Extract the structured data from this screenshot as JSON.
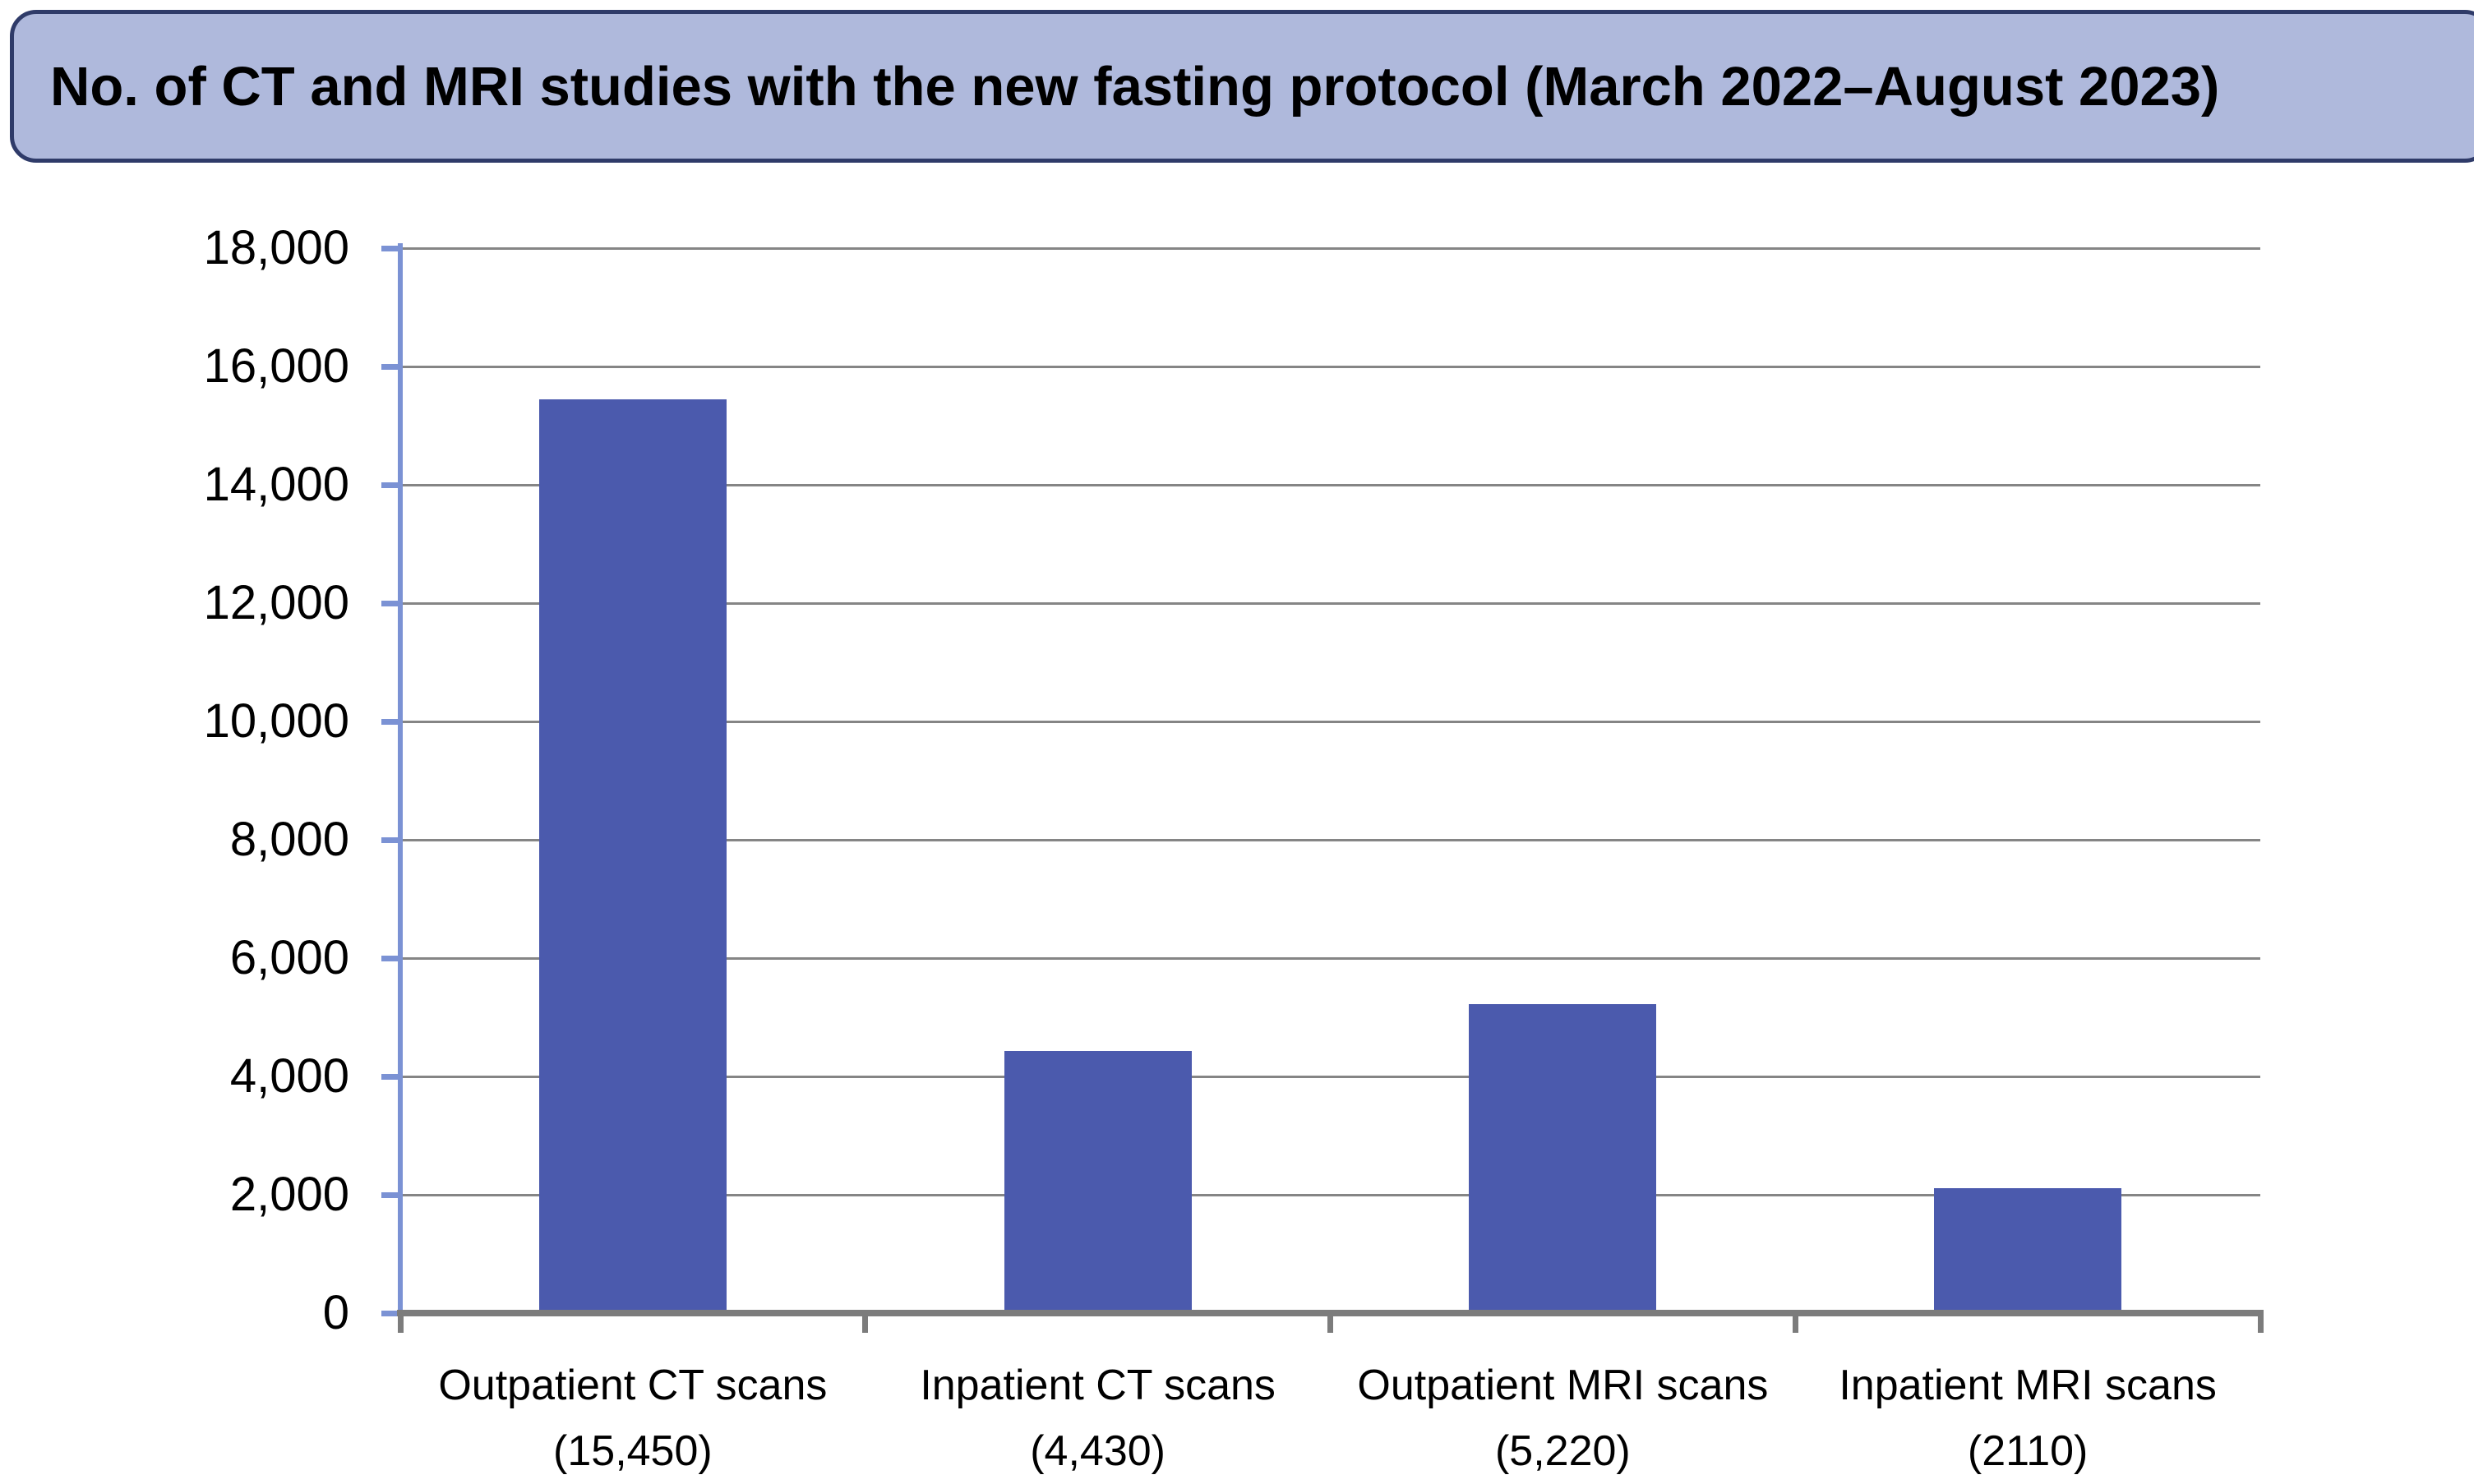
{
  "banner": {
    "title_ref": "see chart_data.title"
  },
  "chart_data": {
    "type": "bar",
    "title": "No. of CT and MRI studies with the new fasting protocol (March 2022–August 2023)",
    "categories": [
      "Outpatient CT scans",
      "Inpatient CT scans",
      "Outpatient MRI scans",
      "Inpatient MRI scans"
    ],
    "category_value_labels": [
      "(15,450)",
      "(4,430)",
      "(5,220)",
      "(2110)"
    ],
    "values": [
      15450,
      4430,
      5220,
      2110
    ],
    "xlabel": "",
    "ylabel": "",
    "ylim": [
      0,
      18000
    ],
    "y_tick_step": 2000,
    "y_ticks": [
      {
        "value": 18000,
        "label": "18,000"
      },
      {
        "value": 16000,
        "label": "16,000"
      },
      {
        "value": 14000,
        "label": "14,000"
      },
      {
        "value": 12000,
        "label": "12,000"
      },
      {
        "value": 10000,
        "label": "10,000"
      },
      {
        "value": 8000,
        "label": "8,000"
      },
      {
        "value": 6000,
        "label": "6,000"
      },
      {
        "value": 4000,
        "label": "4,000"
      },
      {
        "value": 2000,
        "label": "2,000"
      },
      {
        "value": 0,
        "label": "0"
      }
    ],
    "grid": true,
    "legend": false,
    "colors": {
      "bar": "#4B5AAD",
      "y_axis": "#7B92D4",
      "gridline": "#858585",
      "baseline": "#7C7C7C",
      "banner_fill": "#AFB9DC",
      "banner_border": "#2F3B69",
      "text": "#000000"
    }
  }
}
